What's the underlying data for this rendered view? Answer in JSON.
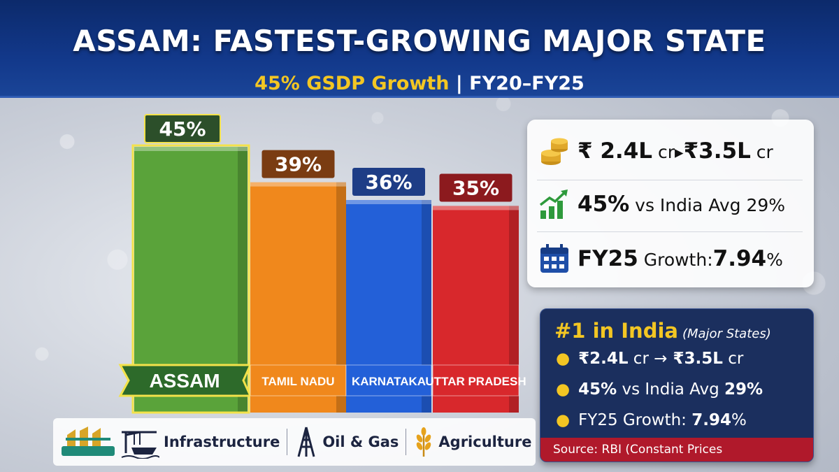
{
  "header": {
    "title": "ASSAM: FASTEST-GROWING MAJOR STATE",
    "subtitle_highlight": "45% GSDP Growth",
    "subtitle_rest": " | FY20–FY25"
  },
  "chart_data": {
    "type": "bar",
    "categories": [
      "ASSAM",
      "TAMIL NADU",
      "KARNATAKA",
      "UTTAR PRADESH"
    ],
    "values": [
      45,
      39,
      36,
      35
    ],
    "value_labels": [
      "45%",
      "39%",
      "36%",
      "35%"
    ],
    "colors": [
      "#5aa33a",
      "#f0881c",
      "#2360d8",
      "#d8282c"
    ],
    "label_colors": [
      "#2c4f2a",
      "#7a3c12",
      "#1e3d86",
      "#8c1a1e"
    ],
    "title": "",
    "xlabel": "",
    "ylabel": "",
    "ylim": [
      0,
      50
    ],
    "grid": false,
    "legend": "none"
  },
  "stats": {
    "row1": {
      "icon": "coins-icon",
      "from": "₹ 2.4L",
      "from_unit": " cr",
      "arrow": "▸",
      "to": "₹3.5L",
      "to_unit": " cr"
    },
    "row2": {
      "icon": "growth-chart-icon",
      "value": "45%",
      "text": " vs India Avg ",
      "avg": "29%"
    },
    "row3": {
      "icon": "calendar-icon",
      "label": "FY25",
      "text": " Growth:",
      "value": "7.94",
      "unit": "%"
    }
  },
  "rank": {
    "heading": "#1 in India",
    "heading_sub": "(Major States)",
    "items": [
      {
        "a": "₹2.4L",
        "b": " cr ",
        "arrow": "→",
        "c": " ₹3.5L",
        "d": " cr"
      },
      {
        "a": "45%",
        "b": " vs India Avg ",
        "c": "29%"
      },
      {
        "a": "FY25 Growth: ",
        "b": "7.94",
        "c": "%"
      }
    ],
    "source": "Source: RBI (Constant Prices"
  },
  "sectors": [
    {
      "icon": "assam-emblem-icon",
      "label": ""
    },
    {
      "icon": "crane-ship-icon",
      "label": "Infrastructure"
    },
    {
      "icon": "oil-rig-icon",
      "label": "Oil & Gas"
    },
    {
      "icon": "wheat-icon",
      "label": "Agriculture"
    }
  ],
  "colors": {
    "header": "#12388a",
    "accent_gold": "#f3c623",
    "source_red": "#b0192b",
    "rank_bg": "#1b2f5e"
  }
}
